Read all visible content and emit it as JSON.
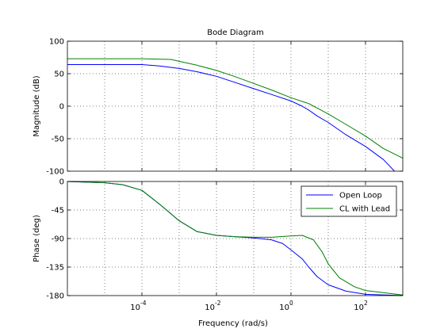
{
  "chart_data": {
    "type": "line",
    "title": "Bode Diagram",
    "xlabel": "Frequency  (rad/s)",
    "x_scale": "log",
    "xlim": [
      1e-06,
      1000
    ],
    "x_tick_labels": [
      {
        "value": 0.0001,
        "base": "10",
        "exp": "-4"
      },
      {
        "value": 0.01,
        "base": "10",
        "exp": "-2"
      },
      {
        "value": 1,
        "base": "10",
        "exp": "0"
      },
      {
        "value": 100,
        "base": "10",
        "exp": "2"
      }
    ],
    "grid": true,
    "legend_position": "top-right",
    "colors": {
      "open_loop": "#0000ff",
      "cl_with_lead": "#008000",
      "grid": "#000000"
    },
    "panels": [
      {
        "id": "magnitude",
        "ylabel": "Magnitude (dB)",
        "ylim": [
          -100,
          100
        ],
        "yticks": [
          100,
          50,
          0,
          -50,
          -100
        ],
        "ytick_labels": [
          "100",
          "50",
          "0",
          "-50",
          "-100"
        ],
        "series": [
          {
            "name": "Open Loop",
            "color": "#0000ff",
            "points": [
              [
                1e-06,
                64
              ],
              [
                0.0001,
                64
              ],
              [
                0.0003,
                62
              ],
              [
                0.001,
                58
              ],
              [
                0.003,
                53
              ],
              [
                0.01,
                46
              ],
              [
                0.03,
                37
              ],
              [
                0.1,
                27
              ],
              [
                0.3,
                18
              ],
              [
                1,
                8
              ],
              [
                2,
                0
              ],
              [
                3,
                -6
              ],
              [
                5,
                -15
              ],
              [
                10,
                -25
              ],
              [
                30,
                -44
              ],
              [
                100,
                -62
              ],
              [
                300,
                -82
              ],
              [
                600,
                -100
              ]
            ]
          },
          {
            "name": "CL with Lead",
            "color": "#008000",
            "points": [
              [
                1e-06,
                73
              ],
              [
                0.0001,
                73
              ],
              [
                0.0006,
                72
              ],
              [
                0.001,
                69
              ],
              [
                0.003,
                63
              ],
              [
                0.01,
                55
              ],
              [
                0.03,
                46
              ],
              [
                0.1,
                35
              ],
              [
                0.3,
                25
              ],
              [
                1,
                13
              ],
              [
                3,
                4
              ],
              [
                10,
                -12
              ],
              [
                30,
                -28
              ],
              [
                100,
                -46
              ],
              [
                300,
                -65
              ],
              [
                1000,
                -80
              ]
            ]
          }
        ]
      },
      {
        "id": "phase",
        "ylabel": "Phase (deg)",
        "ylim": [
          -180,
          0
        ],
        "yticks": [
          0,
          -45,
          -90,
          -135,
          -180
        ],
        "ytick_labels": [
          "0",
          "-45",
          "-90",
          "-135",
          "-180"
        ],
        "legend": [
          "Open Loop",
          "CL with Lead"
        ],
        "series": [
          {
            "name": "Open Loop",
            "color": "#0000ff",
            "points": [
              [
                1e-06,
                0
              ],
              [
                1e-05,
                -2
              ],
              [
                3e-05,
                -5
              ],
              [
                0.0001,
                -14
              ],
              [
                0.0003,
                -36
              ],
              [
                0.001,
                -62
              ],
              [
                0.003,
                -79
              ],
              [
                0.01,
                -85
              ],
              [
                0.03,
                -87
              ],
              [
                0.1,
                -89
              ],
              [
                0.3,
                -92
              ],
              [
                0.6,
                -98
              ],
              [
                1,
                -108
              ],
              [
                2,
                -122
              ],
              [
                3,
                -135
              ],
              [
                5,
                -150
              ],
              [
                10,
                -163
              ],
              [
                30,
                -173
              ],
              [
                100,
                -178
              ],
              [
                1000,
                -180
              ]
            ]
          },
          {
            "name": "CL with Lead",
            "color": "#008000",
            "points": [
              [
                1e-06,
                0
              ],
              [
                1e-05,
                -2
              ],
              [
                3e-05,
                -5
              ],
              [
                0.0001,
                -14
              ],
              [
                0.0003,
                -36
              ],
              [
                0.001,
                -62
              ],
              [
                0.003,
                -79
              ],
              [
                0.01,
                -85
              ],
              [
                0.03,
                -87
              ],
              [
                0.1,
                -88
              ],
              [
                0.3,
                -88
              ],
              [
                1,
                -86
              ],
              [
                2,
                -85
              ],
              [
                4,
                -92
              ],
              [
                7,
                -112
              ],
              [
                10,
                -130
              ],
              [
                20,
                -152
              ],
              [
                50,
                -166
              ],
              [
                100,
                -172
              ],
              [
                1000,
                -179
              ]
            ]
          }
        ]
      }
    ]
  }
}
